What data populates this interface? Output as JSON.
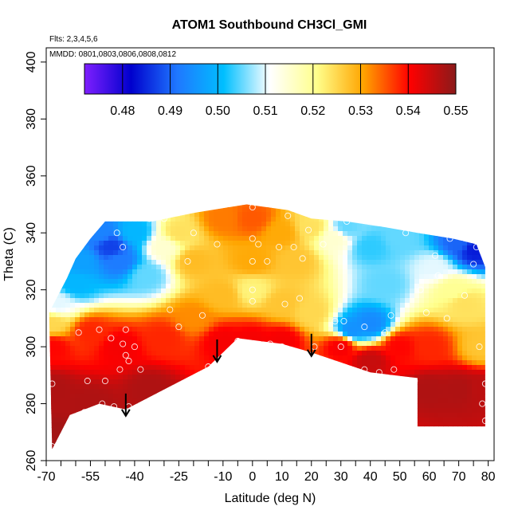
{
  "chart_data": {
    "type": "heatmap",
    "title": "ATOM1 Southbound CH3Cl_GMI",
    "flights_label": "Flts: 2,3,4,5,6",
    "dates_label": "MMDD: 0801,0803,0806,0808,0812",
    "xlabel": "Latitude (deg N)",
    "ylabel": "Theta (C)",
    "xlim": [
      -70,
      82
    ],
    "ylim": [
      260,
      405
    ],
    "x_ticks": [
      -70,
      -55,
      -40,
      -25,
      -10,
      0,
      10,
      20,
      30,
      40,
      50,
      60,
      70,
      80
    ],
    "x_tick_labels": [
      "-70",
      "-55",
      "-40",
      "-25",
      "-10",
      "0",
      "10",
      "20",
      "30",
      "40",
      "50",
      "60",
      "70",
      "80"
    ],
    "x_minor_ticks": [
      -65,
      -60,
      -50,
      -45,
      -35,
      -30,
      -20,
      -15,
      -5,
      5,
      15,
      25,
      35,
      45,
      55,
      65,
      75
    ],
    "y_ticks": [
      260,
      280,
      300,
      320,
      340,
      360,
      380,
      400
    ],
    "y_tick_labels": [
      "260",
      "280",
      "300",
      "320",
      "340",
      "360",
      "380",
      "400"
    ],
    "colorbar": {
      "min": 0.472,
      "max": 0.55,
      "ticks": [
        0.48,
        0.49,
        0.5,
        0.51,
        0.52,
        0.53,
        0.54,
        0.55
      ],
      "tick_labels": [
        "0.48",
        "0.49",
        "0.50",
        "0.51",
        "0.52",
        "0.53",
        "0.54",
        "0.55"
      ],
      "colors": [
        "#7f1fff",
        "#0000cd",
        "#1f78ff",
        "#00bfff",
        "#ffffff",
        "#ffff8c",
        "#ffa500",
        "#ff0000",
        "#8b1a1a"
      ]
    },
    "field_points": [
      {
        "x": -68,
        "y": 268,
        "v": 0.548
      },
      {
        "x": -68,
        "y": 285,
        "v": 0.547
      },
      {
        "x": -68,
        "y": 300,
        "v": 0.54
      },
      {
        "x": -68,
        "y": 308,
        "v": 0.525
      },
      {
        "x": -66,
        "y": 315,
        "v": 0.51
      },
      {
        "x": -60,
        "y": 322,
        "v": 0.5
      },
      {
        "x": -58,
        "y": 330,
        "v": 0.497
      },
      {
        "x": -52,
        "y": 340,
        "v": 0.493
      },
      {
        "x": -48,
        "y": 335,
        "v": 0.487
      },
      {
        "x": -45,
        "y": 330,
        "v": 0.492
      },
      {
        "x": -40,
        "y": 340,
        "v": 0.5
      },
      {
        "x": -36,
        "y": 325,
        "v": 0.505
      },
      {
        "x": -30,
        "y": 335,
        "v": 0.515
      },
      {
        "x": -25,
        "y": 340,
        "v": 0.524
      },
      {
        "x": -20,
        "y": 330,
        "v": 0.528
      },
      {
        "x": -10,
        "y": 345,
        "v": 0.533
      },
      {
        "x": 0,
        "y": 345,
        "v": 0.535
      },
      {
        "x": 0,
        "y": 330,
        "v": 0.53
      },
      {
        "x": 0,
        "y": 320,
        "v": 0.522
      },
      {
        "x": 10,
        "y": 340,
        "v": 0.53
      },
      {
        "x": 15,
        "y": 330,
        "v": 0.527
      },
      {
        "x": 20,
        "y": 342,
        "v": 0.524
      },
      {
        "x": 28,
        "y": 338,
        "v": 0.515
      },
      {
        "x": 32,
        "y": 342,
        "v": 0.505
      },
      {
        "x": 40,
        "y": 335,
        "v": 0.503
      },
      {
        "x": 45,
        "y": 322,
        "v": 0.505
      },
      {
        "x": 40,
        "y": 308,
        "v": 0.494
      },
      {
        "x": 34,
        "y": 306,
        "v": 0.495
      },
      {
        "x": 50,
        "y": 338,
        "v": 0.505
      },
      {
        "x": 62,
        "y": 328,
        "v": 0.51
      },
      {
        "x": 68,
        "y": 320,
        "v": 0.52
      },
      {
        "x": 72,
        "y": 315,
        "v": 0.524
      },
      {
        "x": 70,
        "y": 336,
        "v": 0.49
      },
      {
        "x": 75,
        "y": 334,
        "v": 0.484
      },
      {
        "x": 78,
        "y": 300,
        "v": 0.527
      },
      {
        "x": 78,
        "y": 285,
        "v": 0.546
      },
      {
        "x": -55,
        "y": 305,
        "v": 0.538
      },
      {
        "x": -45,
        "y": 300,
        "v": 0.541
      },
      {
        "x": -30,
        "y": 303,
        "v": 0.538
      },
      {
        "x": -20,
        "y": 310,
        "v": 0.532
      },
      {
        "x": -10,
        "y": 318,
        "v": 0.528
      },
      {
        "x": 10,
        "y": 315,
        "v": 0.527
      },
      {
        "x": 20,
        "y": 312,
        "v": 0.525
      },
      {
        "x": 50,
        "y": 300,
        "v": 0.54
      },
      {
        "x": 60,
        "y": 300,
        "v": 0.538
      },
      {
        "x": 30,
        "y": 300,
        "v": 0.541
      },
      {
        "x": -55,
        "y": 280,
        "v": 0.547
      },
      {
        "x": -35,
        "y": 285,
        "v": 0.547
      },
      {
        "x": 60,
        "y": 285,
        "v": 0.547
      },
      {
        "x": 70,
        "y": 285,
        "v": 0.547
      },
      {
        "x": 0,
        "y": 302,
        "v": 0.541
      },
      {
        "x": -10,
        "y": 302,
        "v": 0.541
      },
      {
        "x": 10,
        "y": 302,
        "v": 0.541
      },
      {
        "x": 40,
        "y": 295,
        "v": 0.545
      }
    ],
    "coverage_polygon": [
      [
        -68,
        264
      ],
      [
        -62,
        276
      ],
      [
        -52,
        280
      ],
      [
        -43,
        278
      ],
      [
        -30,
        285
      ],
      [
        -15,
        293
      ],
      [
        -5,
        303
      ],
      [
        10,
        301
      ],
      [
        20,
        298
      ],
      [
        40,
        291
      ],
      [
        56,
        289
      ],
      [
        56,
        272
      ],
      [
        79,
        272
      ],
      [
        79,
        296
      ],
      [
        79,
        310
      ],
      [
        79,
        328
      ],
      [
        76,
        336
      ],
      [
        68,
        338
      ],
      [
        56,
        340
      ],
      [
        45,
        342
      ],
      [
        32,
        344
      ],
      [
        20,
        345
      ],
      [
        12,
        348
      ],
      [
        -2,
        350
      ],
      [
        -20,
        347
      ],
      [
        -34,
        344
      ],
      [
        -44,
        344
      ],
      [
        -50,
        344
      ],
      [
        -55,
        338
      ],
      [
        -60,
        331
      ],
      [
        -63,
        324
      ],
      [
        -66,
        318
      ],
      [
        -69,
        312
      ]
    ],
    "observations": [
      [
        -68,
        265
      ],
      [
        -68,
        287
      ],
      [
        -59,
        305
      ],
      [
        -57,
        277
      ],
      [
        -56,
        288
      ],
      [
        -52,
        306
      ],
      [
        -51,
        280
      ],
      [
        -50,
        288
      ],
      [
        -48,
        303
      ],
      [
        -47,
        279
      ],
      [
        -45,
        292
      ],
      [
        -44,
        301
      ],
      [
        -43,
        306
      ],
      [
        -43,
        297
      ],
      [
        -42,
        295
      ],
      [
        -42,
        279
      ],
      [
        -40,
        300
      ],
      [
        -38,
        292
      ],
      [
        -46,
        340
      ],
      [
        -44,
        335
      ],
      [
        -35,
        345
      ],
      [
        -30,
        345
      ],
      [
        -28,
        313
      ],
      [
        -25,
        307
      ],
      [
        -22,
        330
      ],
      [
        -20,
        340
      ],
      [
        -17,
        311
      ],
      [
        -15,
        293
      ],
      [
        -12,
        336
      ],
      [
        -5,
        302
      ],
      [
        0,
        299
      ],
      [
        0,
        300
      ],
      [
        0,
        316
      ],
      [
        0,
        320
      ],
      [
        0,
        330
      ],
      [
        0,
        338
      ],
      [
        0,
        349
      ],
      [
        2,
        336
      ],
      [
        5,
        330
      ],
      [
        6,
        301
      ],
      [
        9,
        335
      ],
      [
        10,
        300
      ],
      [
        11,
        315
      ],
      [
        12,
        346
      ],
      [
        14,
        335
      ],
      [
        16,
        317
      ],
      [
        17,
        331
      ],
      [
        19,
        341
      ],
      [
        21,
        300
      ],
      [
        24,
        336
      ],
      [
        28,
        309
      ],
      [
        30,
        300
      ],
      [
        31,
        309
      ],
      [
        32,
        344
      ],
      [
        38,
        292
      ],
      [
        38,
        307
      ],
      [
        43,
        291
      ],
      [
        45,
        305
      ],
      [
        47,
        311
      ],
      [
        48,
        292
      ],
      [
        52,
        340
      ],
      [
        55,
        288
      ],
      [
        57,
        320
      ],
      [
        59,
        312
      ],
      [
        62,
        332
      ],
      [
        63,
        325
      ],
      [
        66,
        310
      ],
      [
        67,
        338
      ],
      [
        72,
        318
      ],
      [
        75,
        329
      ],
      [
        76,
        335
      ],
      [
        77,
        300
      ],
      [
        78,
        280
      ],
      [
        79,
        287
      ],
      [
        79,
        274
      ]
    ],
    "flight_arrows": [
      {
        "x": -12,
        "y_from": 302,
        "y_to": 295
      },
      {
        "x": 20,
        "y_from": 304,
        "y_to": 297
      },
      {
        "x": -43,
        "y_from": 283,
        "y_to": 276
      }
    ]
  }
}
